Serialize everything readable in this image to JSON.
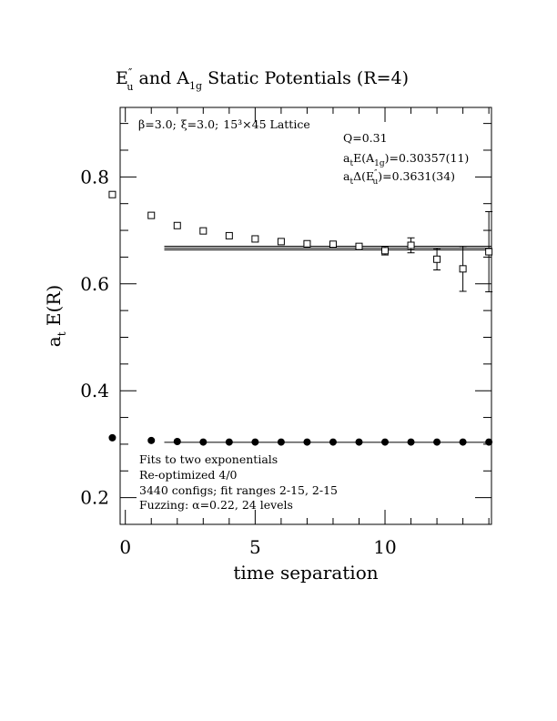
{
  "chart_data": {
    "type": "scatter",
    "title": {
      "base1": "E",
      "sub1": "u",
      "sup1": "″",
      "mid": " and A",
      "sub2": "1g",
      "rest": " Static Potentials (R=4)"
    },
    "xlabel": "time separation",
    "ylabel": {
      "base": "a",
      "sub": "t",
      "rest": " E(R)"
    },
    "xlim": [
      -0.2,
      14.1
    ],
    "ylim": [
      0.15,
      0.93
    ],
    "xticks": [
      0,
      5,
      10
    ],
    "yticks": [
      0.2,
      0.4,
      0.6,
      0.8
    ],
    "tick_labels_x": [
      "0",
      "5",
      "10"
    ],
    "tick_labels_y": [
      "0.2",
      "0.4",
      "0.6",
      "0.8"
    ],
    "lattice_text": {
      "beta": "β=3.0;",
      "xi": "ξ=3.0;",
      "lattice": "15³×45 Lattice"
    },
    "fit_info": {
      "q": "Q=0.31",
      "a1g": {
        "a": "a",
        "t": "t",
        "e": "E(A",
        "sub": "1g",
        "val": ")=0.30357(11)"
      },
      "eu": {
        "a": "a",
        "t": "t",
        "e": "Δ(E",
        "sup": "″",
        "sub": "u",
        "val": ")=0.3631(34)"
      }
    },
    "notes": [
      "Fits to two exponentials",
      "Re-optimized 4/0",
      "3440 configs; fit ranges 2-15, 2-15",
      "Fuzzing: α=0.22, 24 levels"
    ],
    "series": [
      {
        "name": "Eu''",
        "marker": "open-square",
        "x": [
          -0.5,
          1,
          2,
          3,
          4,
          5,
          6,
          7,
          8,
          9,
          10,
          11,
          12,
          13,
          14
        ],
        "y": [
          0.767,
          0.728,
          0.709,
          0.699,
          0.69,
          0.684,
          0.679,
          0.675,
          0.674,
          0.67,
          0.662,
          0.672,
          0.646,
          0.628,
          0.66
        ],
        "err": [
          0.002,
          0.002,
          0.002,
          0.002,
          0.002,
          0.002,
          0.003,
          0.004,
          0.005,
          0.006,
          0.008,
          0.014,
          0.02,
          0.042,
          0.075
        ]
      },
      {
        "name": "A1g",
        "marker": "filled-circle",
        "x": [
          -0.5,
          1,
          2,
          3,
          4,
          5,
          6,
          7,
          8,
          9,
          10,
          11,
          12,
          13,
          14
        ],
        "y": [
          0.312,
          0.307,
          0.305,
          0.304,
          0.304,
          0.304,
          0.304,
          0.304,
          0.304,
          0.304,
          0.304,
          0.304,
          0.304,
          0.304,
          0.304
        ],
        "err": [
          0,
          0,
          0,
          0,
          0,
          0,
          0,
          0,
          0,
          0,
          0,
          0,
          0,
          0,
          0
        ]
      }
    ],
    "fits": [
      {
        "name": "Eu'' fit",
        "x_range": [
          1.5,
          14.1
        ],
        "center": 0.6669,
        "band": 0.0034
      },
      {
        "name": "A1g fit",
        "x_range": [
          1.5,
          14.1
        ],
        "center": 0.30357,
        "band": 0.00011
      }
    ]
  }
}
